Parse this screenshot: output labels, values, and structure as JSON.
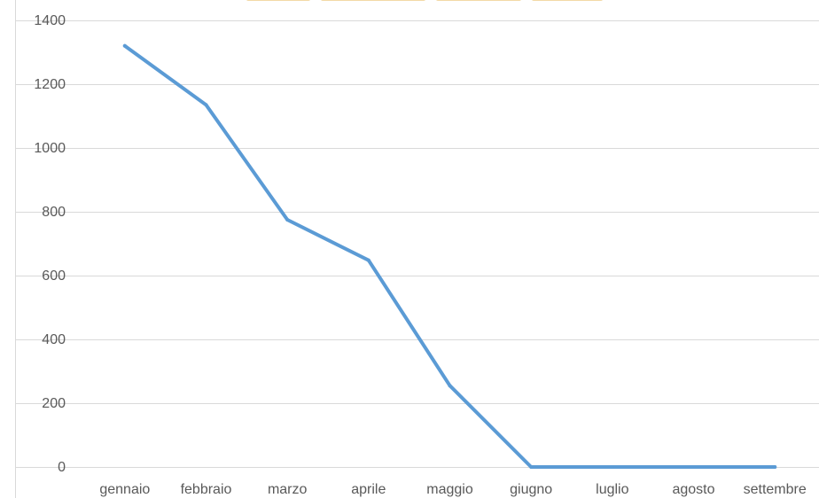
{
  "chart_data": {
    "type": "line",
    "categories": [
      "gennaio",
      "febbraio",
      "marzo",
      "aprile",
      "maggio",
      "giugno",
      "luglio",
      "agosto",
      "settembre"
    ],
    "series": [
      {
        "values": [
          1320,
          1135,
          775,
          648,
          255,
          0,
          0,
          0,
          0
        ],
        "color": "#5b9bd5"
      }
    ],
    "title": "",
    "xlabel": "",
    "ylabel": "",
    "ylim": [
      0,
      1400
    ],
    "yticks": [
      0,
      200,
      400,
      600,
      800,
      1000,
      1200,
      1400
    ],
    "grid": true,
    "legend": "none",
    "colors": {
      "line": "#5b9bd5",
      "grid": "#d9d9d9",
      "axis": "#d9d9d9",
      "text": "#595959"
    }
  }
}
